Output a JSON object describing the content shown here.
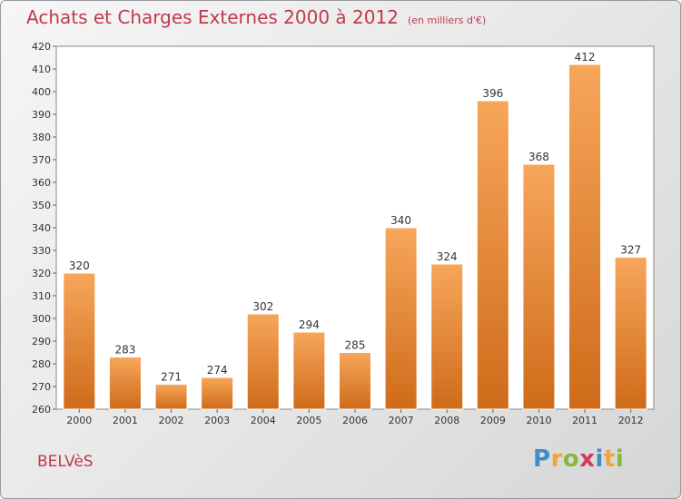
{
  "header": {
    "title": "Achats et Charges Externes 2000 à 2012",
    "unit": "(en milliers d'€)"
  },
  "footer": {
    "location": "BELVèS",
    "logo": "Proxiti"
  },
  "colors": {
    "title": "#c0394d",
    "bar_light": "#f7a65a",
    "bar_dark": "#cf6b1a"
  },
  "chart_data": {
    "type": "bar",
    "title": "Achats et Charges Externes 2000 à 2012",
    "xlabel": "",
    "ylabel": "",
    "ylim": [
      260,
      420
    ],
    "yticks": [
      260,
      270,
      280,
      290,
      300,
      310,
      320,
      330,
      340,
      350,
      360,
      370,
      380,
      390,
      400,
      410,
      420
    ],
    "categories": [
      "2000",
      "2001",
      "2002",
      "2003",
      "2004",
      "2005",
      "2006",
      "2007",
      "2008",
      "2009",
      "2010",
      "2011",
      "2012"
    ],
    "values": [
      320,
      283,
      271,
      274,
      302,
      294,
      285,
      340,
      324,
      396,
      368,
      412,
      327
    ],
    "grid": false,
    "legend": "none"
  }
}
